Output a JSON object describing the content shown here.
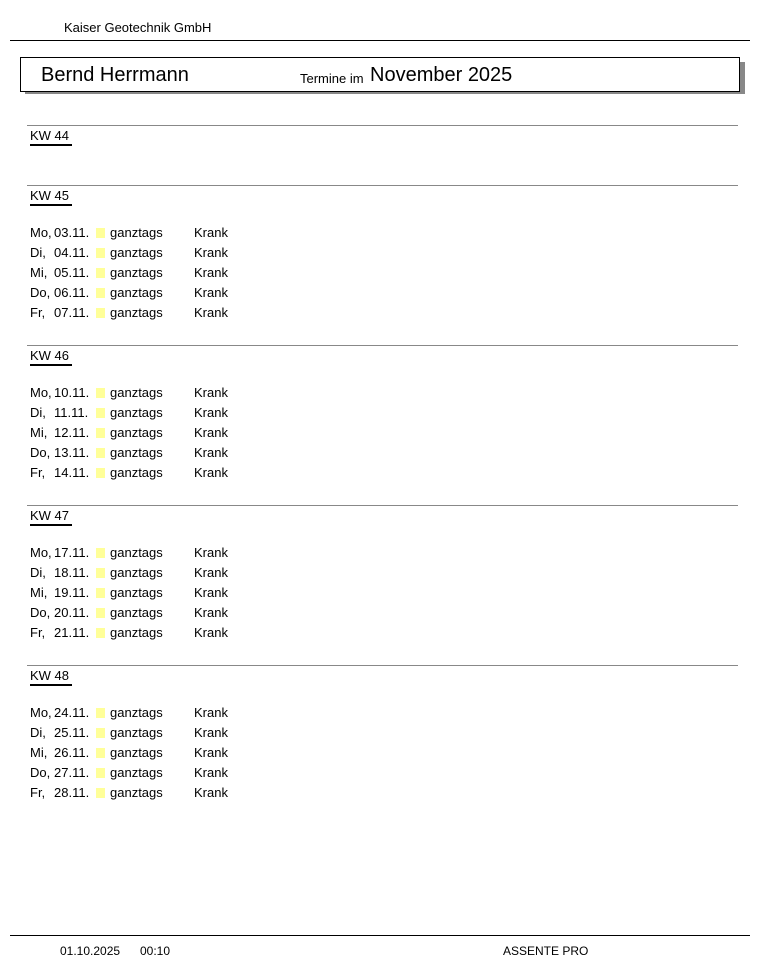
{
  "header": {
    "company": "Kaiser Geotechnik GmbH",
    "person": "Bernd Herrmann",
    "termine_label": "Termine im",
    "month": "November 2025"
  },
  "legend_colors": {
    "ganztags_marker": "#ffff99"
  },
  "weeks": [
    {
      "label": "KW 44",
      "entries": []
    },
    {
      "label": "KW 45",
      "entries": [
        {
          "day": "Mo,",
          "date": "03.11.",
          "time": "ganztags",
          "text": "Krank"
        },
        {
          "day": "Di,",
          "date": "04.11.",
          "time": "ganztags",
          "text": "Krank"
        },
        {
          "day": "Mi,",
          "date": "05.11.",
          "time": "ganztags",
          "text": "Krank"
        },
        {
          "day": "Do,",
          "date": "06.11.",
          "time": "ganztags",
          "text": "Krank"
        },
        {
          "day": "Fr,",
          "date": "07.11.",
          "time": "ganztags",
          "text": "Krank"
        }
      ]
    },
    {
      "label": "KW 46",
      "entries": [
        {
          "day": "Mo,",
          "date": "10.11.",
          "time": "ganztags",
          "text": "Krank"
        },
        {
          "day": "Di,",
          "date": "11.11.",
          "time": "ganztags",
          "text": "Krank"
        },
        {
          "day": "Mi,",
          "date": "12.11.",
          "time": "ganztags",
          "text": "Krank"
        },
        {
          "day": "Do,",
          "date": "13.11.",
          "time": "ganztags",
          "text": "Krank"
        },
        {
          "day": "Fr,",
          "date": "14.11.",
          "time": "ganztags",
          "text": "Krank"
        }
      ]
    },
    {
      "label": "KW 47",
      "entries": [
        {
          "day": "Mo,",
          "date": "17.11.",
          "time": "ganztags",
          "text": "Krank"
        },
        {
          "day": "Di,",
          "date": "18.11.",
          "time": "ganztags",
          "text": "Krank"
        },
        {
          "day": "Mi,",
          "date": "19.11.",
          "time": "ganztags",
          "text": "Krank"
        },
        {
          "day": "Do,",
          "date": "20.11.",
          "time": "ganztags",
          "text": "Krank"
        },
        {
          "day": "Fr,",
          "date": "21.11.",
          "time": "ganztags",
          "text": "Krank"
        }
      ]
    },
    {
      "label": "KW 48",
      "entries": [
        {
          "day": "Mo,",
          "date": "24.11.",
          "time": "ganztags",
          "text": "Krank"
        },
        {
          "day": "Di,",
          "date": "25.11.",
          "time": "ganztags",
          "text": "Krank"
        },
        {
          "day": "Mi,",
          "date": "26.11.",
          "time": "ganztags",
          "text": "Krank"
        },
        {
          "day": "Do,",
          "date": "27.11.",
          "time": "ganztags",
          "text": "Krank"
        },
        {
          "day": "Fr,",
          "date": "28.11.",
          "time": "ganztags",
          "text": "Krank"
        }
      ]
    }
  ],
  "footer": {
    "print_date": "01.10.2025",
    "print_time": "00:10",
    "product": "ASSENTE PRO"
  }
}
